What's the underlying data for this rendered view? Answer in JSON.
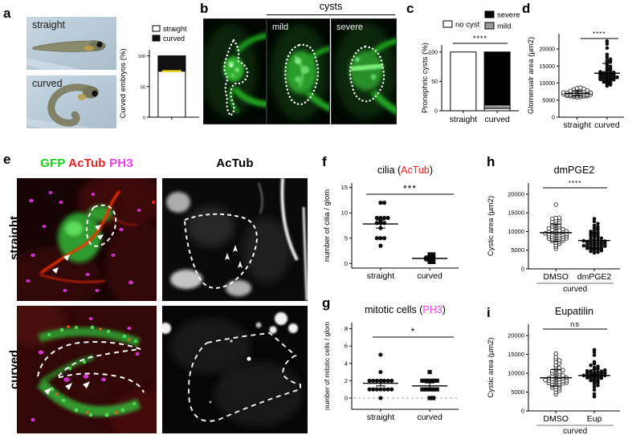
{
  "panels": {
    "a": {
      "label": "a",
      "photos": [
        {
          "label": "straight"
        },
        {
          "label": "curved"
        }
      ]
    },
    "b": {
      "label": "b",
      "header": "cysts",
      "image_labels": [
        "",
        "mild",
        "severe"
      ]
    },
    "c": {
      "label": "c"
    },
    "d": {
      "label": "d"
    },
    "e": {
      "label": "e",
      "merge_header": [
        {
          "text": "GFP",
          "color": "#19d419"
        },
        {
          "text": "AcTub",
          "color": "#ea2222"
        },
        {
          "text": "PH3",
          "color": "#f23cf2"
        }
      ],
      "actub_header": "AcTub",
      "row_labels": [
        "straight",
        "curved"
      ]
    },
    "f": {
      "label": "f"
    },
    "g": {
      "label": "g"
    },
    "h": {
      "label": "h"
    },
    "i": {
      "label": "i"
    }
  },
  "chart_data": {
    "a": {
      "type": "bar",
      "ylabel": "Curved embryos (%)",
      "ylim": [
        0,
        110
      ],
      "yticks": [
        0,
        50,
        100
      ],
      "legend": [
        {
          "label": "straight",
          "color": "#ffffff"
        },
        {
          "label": "curved",
          "color": "#111111"
        }
      ],
      "categories": [
        ""
      ],
      "series": [
        {
          "name": "straight",
          "color": "#ffffff",
          "values": [
            75
          ]
        },
        {
          "name": "curved",
          "color": "#111111",
          "values": [
            25
          ]
        }
      ],
      "marker": {
        "category": 0,
        "value": 75,
        "color": "#e9d81f"
      }
    },
    "c": {
      "type": "bar",
      "ylabel": "Pronephric cysts (%)",
      "ylim": [
        0,
        112
      ],
      "yticks": [
        0,
        50,
        100
      ],
      "legend": [
        {
          "label": "no cyst",
          "color": "#ffffff"
        },
        {
          "label": "severe",
          "color": "#000000"
        },
        {
          "label": "mild",
          "color": "#9a9a9a"
        }
      ],
      "categories": [
        "straight",
        "curved"
      ],
      "series": [
        {
          "name": "no cyst",
          "color": "#ffffff",
          "values": [
            100,
            4
          ]
        },
        {
          "name": "mild",
          "color": "#9a9a9a",
          "values": [
            0,
            6
          ]
        },
        {
          "name": "severe",
          "color": "#000000",
          "values": [
            0,
            90
          ]
        }
      ],
      "significance": "****"
    },
    "d": {
      "type": "scatter",
      "ylabel": "Glomerualr area (µm2)",
      "ylim": [
        0,
        24500
      ],
      "yticks": [
        0,
        5000,
        10000,
        15000,
        20000
      ],
      "significance": "****",
      "groups": [
        {
          "name": "straight",
          "marker": "open-circle",
          "mean": 7000,
          "sd": 750,
          "values": [
            5800,
            5900,
            6000,
            6100,
            6150,
            6200,
            6250,
            6300,
            6350,
            6400,
            6450,
            6500,
            6550,
            6600,
            6650,
            6700,
            6750,
            6800,
            6850,
            6900,
            6950,
            7000,
            7050,
            7100,
            7150,
            7200,
            7250,
            7300,
            7350,
            7400,
            7500,
            7600,
            7700,
            7800,
            7900,
            8000,
            8100,
            8300,
            8500,
            8700
          ]
        },
        {
          "name": "curved",
          "marker": "filled-circle",
          "mean": 12900,
          "sd": 2900,
          "values": [
            9200,
            9500,
            9800,
            10000,
            10200,
            10400,
            10500,
            10700,
            10800,
            10900,
            11000,
            11100,
            11200,
            11300,
            11400,
            11500,
            11600,
            11700,
            11800,
            11900,
            12000,
            12100,
            12200,
            12300,
            12400,
            12500,
            12600,
            12700,
            12800,
            12900,
            13000,
            13100,
            13300,
            13500,
            13700,
            13900,
            14200,
            14500,
            14900,
            15300,
            15700,
            16100,
            16400,
            16700,
            17000,
            17600,
            18400,
            20300,
            21500,
            22300
          ]
        }
      ]
    },
    "f": {
      "type": "scatter",
      "title_parts": [
        {
          "text": "cilia (",
          "color": "#000000"
        },
        {
          "text": "AcTub",
          "color": "#ea2222"
        },
        {
          "text": ")",
          "color": "#000000"
        }
      ],
      "ylabel": "number of cilia / glom",
      "ylim": [
        -0.9,
        15.9
      ],
      "yticks": [
        0,
        5,
        10,
        15
      ],
      "significance": "***",
      "groups": [
        {
          "name": "straight",
          "marker": "filled-circle",
          "mean": 7.8,
          "sd": 0.8,
          "values": [
            12,
            12,
            9,
            9,
            9,
            9,
            8.5,
            8,
            8,
            8,
            7,
            5,
            5,
            5,
            3.5
          ]
        },
        {
          "name": "curved",
          "marker": "filled-square",
          "mean": 1.0,
          "sd": 0.5,
          "values": [
            1.8,
            1.8,
            1,
            1,
            1,
            0.3,
            0.3
          ]
        }
      ]
    },
    "g": {
      "type": "scatter",
      "title_parts": [
        {
          "text": "mitotic cells (",
          "color": "#000000"
        },
        {
          "text": "PH3",
          "color": "#f23cf2"
        },
        {
          "text": ")",
          "color": "#000000"
        }
      ],
      "ylabel": "number of mitotic cells / glom",
      "ylim": [
        -1.3,
        8.7
      ],
      "yticks": [
        0,
        2,
        4,
        6,
        8
      ],
      "zero_line": true,
      "significance": "*",
      "groups": [
        {
          "name": "straight",
          "marker": "filled-circle",
          "mean": 1.7,
          "sd": 0.3,
          "values": [
            5,
            3,
            2,
            2,
            2,
            2,
            2,
            2,
            2,
            2,
            1,
            1,
            1,
            1,
            1,
            1,
            1,
            0
          ]
        },
        {
          "name": "curved",
          "marker": "filled-square",
          "mean": 1.4,
          "sd": 0.35,
          "values": [
            3,
            2,
            2,
            2,
            2,
            2,
            1,
            1,
            1,
            1,
            1,
            0,
            0
          ]
        }
      ]
    },
    "h": {
      "type": "scatter",
      "title_parts": [
        {
          "text": "dmPGE2",
          "color": "#000000"
        }
      ],
      "ylabel": "Cystic area (µm2)",
      "ylim": [
        0,
        23000
      ],
      "yticks": [
        0,
        5000,
        10000,
        15000,
        20000
      ],
      "significance": "****",
      "group_label": "curved",
      "groups": [
        {
          "name": "DMSO",
          "marker": "open-circle",
          "mean": 9700,
          "sd": 2300,
          "values": [
            5400,
            6000,
            6400,
            6700,
            7000,
            7200,
            7400,
            7500,
            7600,
            7800,
            7900,
            8000,
            8100,
            8200,
            8300,
            8400,
            8500,
            8600,
            8700,
            8800,
            8900,
            9000,
            9100,
            9200,
            9300,
            9400,
            9500,
            9600,
            9700,
            9800,
            9900,
            10000,
            10100,
            10200,
            10300,
            10500,
            10600,
            10800,
            11000,
            11200,
            11400,
            11600,
            11800,
            12000,
            12200,
            12400,
            12600,
            12900,
            13200,
            13400,
            13600,
            13700,
            17200
          ]
        },
        {
          "name": "dmPGE2",
          "marker": "filled-circle",
          "mean": 7600,
          "sd": 2100,
          "values": [
            4300,
            4500,
            4700,
            4900,
            5000,
            5200,
            5300,
            5400,
            5500,
            5600,
            5700,
            5800,
            5900,
            6000,
            6100,
            6200,
            6300,
            6400,
            6500,
            6600,
            6700,
            6800,
            6900,
            7000,
            7100,
            7200,
            7300,
            7400,
            7500,
            7600,
            7800,
            8000,
            8200,
            8400,
            8600,
            8800,
            9000,
            9200,
            9400,
            9600,
            9800,
            10000,
            10300,
            10600,
            10900,
            11200,
            11600,
            12100,
            12700,
            13400
          ]
        }
      ]
    },
    "i": {
      "type": "scatter",
      "title_parts": [
        {
          "text": "Eupatilin",
          "color": "#000000"
        }
      ],
      "ylabel": "Cystic area (µm2)",
      "ylim": [
        0,
        23000
      ],
      "yticks": [
        0,
        5000,
        10000,
        15000,
        20000
      ],
      "significance": "ns",
      "group_label": "curved",
      "groups": [
        {
          "name": "DMSO",
          "marker": "open-circle",
          "mean": 8800,
          "sd": 2200,
          "values": [
            4400,
            5000,
            5400,
            5700,
            6000,
            6200,
            6400,
            6600,
            6800,
            7000,
            7100,
            7200,
            7300,
            7400,
            7500,
            7600,
            7700,
            7800,
            7900,
            8000,
            8100,
            8200,
            8300,
            8400,
            8500,
            8600,
            8700,
            8800,
            8900,
            9000,
            9200,
            9400,
            9600,
            9800,
            10000,
            10200,
            10400,
            10600,
            10800,
            11000,
            11400,
            11800,
            12200,
            12600,
            13000,
            13400,
            13800,
            14300,
            15200
          ]
        },
        {
          "name": "Eup",
          "marker": "filled-circle",
          "mean": 9400,
          "sd": 1500,
          "values": [
            3800,
            4500,
            5600,
            6400,
            6800,
            7200,
            7500,
            7700,
            7900,
            8100,
            8300,
            8500,
            8600,
            8700,
            8800,
            8900,
            9000,
            9100,
            9200,
            9300,
            9400,
            9400,
            9500,
            9500,
            9600,
            9700,
            9800,
            9900,
            10000,
            10100,
            10200,
            10300,
            10400,
            10500,
            10600,
            10800,
            11000,
            11200,
            11500,
            11800,
            12100,
            12500,
            13000,
            14800,
            15600,
            16200
          ]
        }
      ]
    }
  }
}
